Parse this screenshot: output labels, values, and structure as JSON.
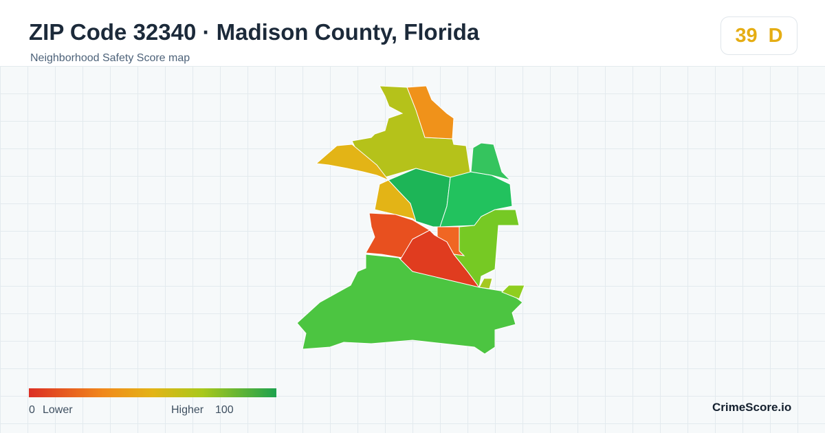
{
  "header": {
    "title": "ZIP Code 32340 · Madison County, Florida",
    "subtitle": "Neighborhood Safety Score map"
  },
  "score": {
    "value": 39,
    "grade": "D"
  },
  "legend": {
    "min": 0,
    "min_label": "Lower",
    "max_label": "Higher",
    "max": 100
  },
  "footer": {
    "brand": "CrimeScore.io"
  }
}
